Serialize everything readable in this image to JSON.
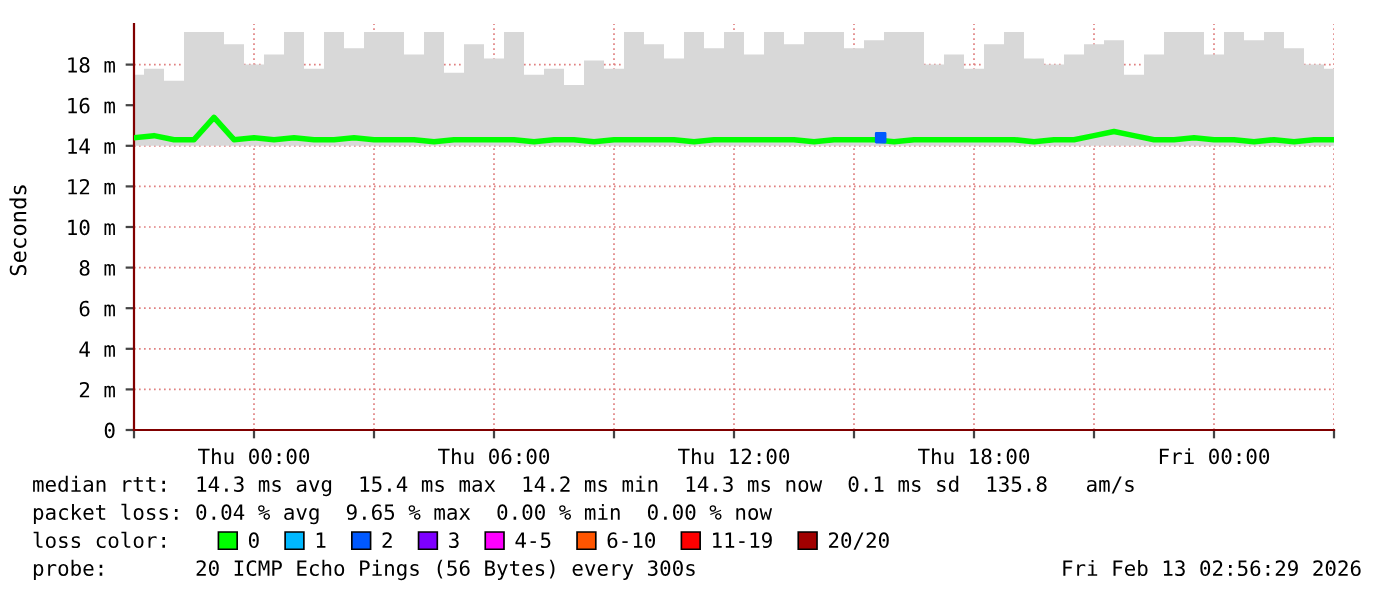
{
  "chart_data": {
    "type": "line",
    "ylabel": "Seconds",
    "x": [
      "2026-02-11T21:00",
      "2026-02-11T21:30",
      "2026-02-11T22:00",
      "2026-02-11T22:30",
      "2026-02-11T23:00",
      "2026-02-11T23:30",
      "2026-02-12T00:00",
      "2026-02-12T00:30",
      "2026-02-12T01:00",
      "2026-02-12T01:30",
      "2026-02-12T02:00",
      "2026-02-12T02:30",
      "2026-02-12T03:00",
      "2026-02-12T03:30",
      "2026-02-12T04:00",
      "2026-02-12T04:30",
      "2026-02-12T05:00",
      "2026-02-12T05:30",
      "2026-02-12T06:00",
      "2026-02-12T06:30",
      "2026-02-12T07:00",
      "2026-02-12T07:30",
      "2026-02-12T08:00",
      "2026-02-12T08:30",
      "2026-02-12T09:00",
      "2026-02-12T09:30",
      "2026-02-12T10:00",
      "2026-02-12T10:30",
      "2026-02-12T11:00",
      "2026-02-12T11:30",
      "2026-02-12T12:00",
      "2026-02-12T12:30",
      "2026-02-12T13:00",
      "2026-02-12T13:30",
      "2026-02-12T14:00",
      "2026-02-12T14:30",
      "2026-02-12T15:00",
      "2026-02-12T15:30",
      "2026-02-12T16:00",
      "2026-02-12T16:30",
      "2026-02-12T17:00",
      "2026-02-12T17:30",
      "2026-02-12T18:00",
      "2026-02-12T18:30",
      "2026-02-12T19:00",
      "2026-02-12T19:30",
      "2026-02-12T20:00",
      "2026-02-12T20:30",
      "2026-02-12T21:00",
      "2026-02-12T21:30",
      "2026-02-12T22:00",
      "2026-02-12T22:30",
      "2026-02-12T23:00",
      "2026-02-12T23:30",
      "2026-02-13T00:00",
      "2026-02-13T00:30",
      "2026-02-13T01:00",
      "2026-02-13T01:30",
      "2026-02-13T02:00",
      "2026-02-13T02:30",
      "2026-02-13T03:00"
    ],
    "series": [
      {
        "name": "0",
        "color": "#00ff00",
        "values": [
          14.4,
          14.5,
          14.3,
          14.3,
          15.4,
          14.3,
          14.4,
          14.3,
          14.4,
          14.3,
          14.3,
          14.4,
          14.3,
          14.3,
          14.3,
          14.2,
          14.3,
          14.3,
          14.3,
          14.3,
          14.2,
          14.3,
          14.3,
          14.2,
          14.3,
          14.3,
          14.3,
          14.3,
          14.2,
          14.3,
          14.3,
          14.3,
          14.3,
          14.3,
          14.2,
          14.3,
          14.3,
          14.3,
          14.2,
          14.3,
          14.3,
          14.3,
          14.3,
          14.3,
          14.3,
          14.2,
          14.3,
          14.3,
          14.5,
          14.7,
          14.5,
          14.3,
          14.3,
          14.4,
          14.3,
          14.3,
          14.2,
          14.3,
          14.2,
          14.3,
          14.3
        ],
        "lower": [
          14.0,
          14.0,
          14.0,
          14.0,
          14.0,
          14.0,
          14.0,
          14.0,
          14.0,
          14.0,
          14.0,
          14.0,
          14.0,
          14.0,
          14.0,
          14.0,
          14.0,
          14.0,
          14.0,
          14.0,
          14.0,
          14.0,
          14.0,
          14.0,
          14.0,
          14.0,
          14.0,
          14.0,
          14.0,
          14.0,
          14.0,
          14.0,
          14.0,
          14.0,
          14.0,
          14.0,
          14.0,
          14.0,
          14.0,
          14.0,
          14.0,
          14.0,
          14.0,
          14.0,
          14.0,
          14.0,
          14.0,
          14.0,
          14.0,
          14.0,
          14.0,
          14.0,
          14.0,
          14.0,
          14.0,
          14.0,
          14.0,
          14.0,
          14.0,
          14.0,
          14.0
        ],
        "upper": [
          17.5,
          17.8,
          17.2,
          19.6,
          19.6,
          19.0,
          18.0,
          18.5,
          19.6,
          17.8,
          19.6,
          18.8,
          19.6,
          19.6,
          18.5,
          19.6,
          17.6,
          19.0,
          18.3,
          19.6,
          17.5,
          17.8,
          17.0,
          18.2,
          17.8,
          19.6,
          19.0,
          18.3,
          19.6,
          18.8,
          19.6,
          18.5,
          19.6,
          19.0,
          19.6,
          19.6,
          18.8,
          19.2,
          19.6,
          19.6,
          18.0,
          18.5,
          17.8,
          19.0,
          19.6,
          18.3,
          18.0,
          18.5,
          19.0,
          19.2,
          17.5,
          18.5,
          19.6,
          19.6,
          18.5,
          19.6,
          19.2,
          19.6,
          18.8,
          18.0,
          17.8
        ]
      },
      {
        "name": "1",
        "color": "#00b8ff",
        "values": [
          null,
          null,
          null,
          null,
          null,
          null,
          null,
          null,
          null,
          null,
          null,
          null,
          null,
          null,
          null,
          null,
          null,
          null,
          null,
          null,
          null,
          null,
          null,
          null,
          null,
          null,
          null,
          null,
          null,
          null,
          null,
          null,
          null,
          null,
          null,
          null,
          null,
          null,
          null,
          null,
          null,
          null,
          null,
          null,
          null,
          null,
          null,
          null,
          null,
          null,
          null,
          null,
          null,
          null,
          null,
          null,
          null,
          null,
          null,
          null,
          null
        ]
      },
      {
        "name": "2",
        "color": "#0059ff",
        "type": "scatter",
        "marker": "square",
        "x": [
          "2026-02-12T15:40"
        ],
        "values": [
          14.4
        ]
      },
      {
        "name": "3",
        "color": "#7e00ff",
        "values": [
          null,
          null,
          null,
          null,
          null,
          null,
          null,
          null,
          null,
          null,
          null,
          null,
          null,
          null,
          null,
          null,
          null,
          null,
          null,
          null,
          null,
          null,
          null,
          null,
          null,
          null,
          null,
          null,
          null,
          null,
          null,
          null,
          null,
          null,
          null,
          null,
          null,
          null,
          null,
          null,
          null,
          null,
          null,
          null,
          null,
          null,
          null,
          null,
          null,
          null,
          null,
          null,
          null,
          null,
          null,
          null,
          null,
          null,
          null,
          null,
          null
        ]
      },
      {
        "name": "4-5",
        "color": "#ff00ff",
        "values": [
          null,
          null,
          null,
          null,
          null,
          null,
          null,
          null,
          null,
          null,
          null,
          null,
          null,
          null,
          null,
          null,
          null,
          null,
          null,
          null,
          null,
          null,
          null,
          null,
          null,
          null,
          null,
          null,
          null,
          null,
          null,
          null,
          null,
          null,
          null,
          null,
          null,
          null,
          null,
          null,
          null,
          null,
          null,
          null,
          null,
          null,
          null,
          null,
          null,
          null,
          null,
          null,
          null,
          null,
          null,
          null,
          null,
          null,
          null,
          null,
          null
        ]
      },
      {
        "name": "6-10",
        "color": "#ff5500",
        "values": [
          null,
          null,
          null,
          null,
          null,
          null,
          null,
          null,
          null,
          null,
          null,
          null,
          null,
          null,
          null,
          null,
          null,
          null,
          null,
          null,
          null,
          null,
          null,
          null,
          null,
          null,
          null,
          null,
          null,
          null,
          null,
          null,
          null,
          null,
          null,
          null,
          null,
          null,
          null,
          null,
          null,
          null,
          null,
          null,
          null,
          null,
          null,
          null,
          null,
          null,
          null,
          null,
          null,
          null,
          null,
          null,
          null,
          null,
          null,
          null,
          null
        ]
      },
      {
        "name": "11-19",
        "color": "#ff0000",
        "values": [
          null,
          null,
          null,
          null,
          null,
          null,
          null,
          null,
          null,
          null,
          null,
          null,
          null,
          null,
          null,
          null,
          null,
          null,
          null,
          null,
          null,
          null,
          null,
          null,
          null,
          null,
          null,
          null,
          null,
          null,
          null,
          null,
          null,
          null,
          null,
          null,
          null,
          null,
          null,
          null,
          null,
          null,
          null,
          null,
          null,
          null,
          null,
          null,
          null,
          null,
          null,
          null,
          null,
          null,
          null,
          null,
          null,
          null,
          null,
          null,
          null
        ]
      },
      {
        "name": "20/20",
        "color": "#a10000",
        "values": [
          null,
          null,
          null,
          null,
          null,
          null,
          null,
          null,
          null,
          null,
          null,
          null,
          null,
          null,
          null,
          null,
          null,
          null,
          null,
          null,
          null,
          null,
          null,
          null,
          null,
          null,
          null,
          null,
          null,
          null,
          null,
          null,
          null,
          null,
          null,
          null,
          null,
          null,
          null,
          null,
          null,
          null,
          null,
          null,
          null,
          null,
          null,
          null,
          null,
          null,
          null,
          null,
          null,
          null,
          null,
          null,
          null,
          null,
          null,
          null,
          null
        ]
      }
    ],
    "legend_title": "loss color:",
    "legend": "bottom",
    "grid": true,
    "xlim": [
      "2026-02-11T21:00",
      "2026-02-13T03:00"
    ],
    "xticks": [
      {
        "value": "2026-02-11T21:00",
        "label": null
      },
      {
        "value": "2026-02-12T00:00",
        "label": "Thu 00:00"
      },
      {
        "value": "2026-02-12T03:00",
        "label": null
      },
      {
        "value": "2026-02-12T06:00",
        "label": "Thu 06:00"
      },
      {
        "value": "2026-02-12T09:00",
        "label": null
      },
      {
        "value": "2026-02-12T12:00",
        "label": "Thu 12:00"
      },
      {
        "value": "2026-02-12T15:00",
        "label": null
      },
      {
        "value": "2026-02-12T18:00",
        "label": "Thu 18:00"
      },
      {
        "value": "2026-02-12T21:00",
        "label": null
      },
      {
        "value": "2026-02-13T00:00",
        "label": "Fri 00:00"
      },
      {
        "value": "2026-02-13T03:00",
        "label": null
      }
    ],
    "ylim": [
      0,
      20
    ],
    "yticks": [
      0,
      {
        "value": 2,
        "label": "2 m"
      },
      {
        "value": 4,
        "label": "4 m"
      },
      {
        "value": 6,
        "label": "6 m"
      },
      {
        "value": 8,
        "label": "8 m"
      },
      {
        "value": 10,
        "label": "10 m"
      },
      {
        "value": 12,
        "label": "12 m"
      },
      {
        "value": 14,
        "label": "14 m"
      },
      {
        "value": 16,
        "label": "16 m"
      },
      {
        "value": 18,
        "label": "18 m"
      }
    ],
    "annotations": [
      "median rtt:  14.3 ms avg  15.4 ms max  14.2 ms min  14.3 ms now  0.1 ms sd  135.8   am/s",
      "packet loss: 0.04 % avg  9.65 % max  0.00 % min  0.00 % now",
      "probe:       20 ICMP Echo Pings (56 Bytes) every 300s",
      "Fri Feb 13 02:56:29 2026"
    ]
  }
}
